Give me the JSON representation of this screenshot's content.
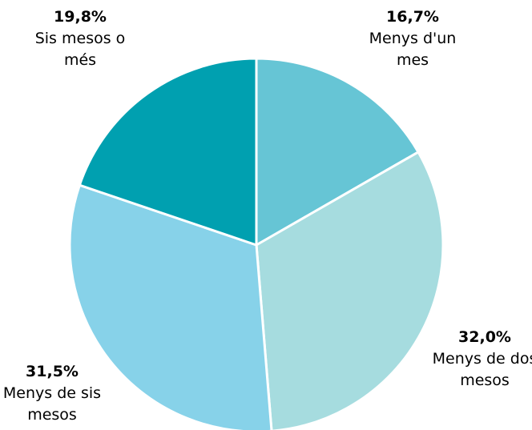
{
  "chart_data": {
    "type": "pie",
    "categories": [
      "Menys d'un mes",
      "Menys de dos mesos",
      "Menys de sis mesos",
      "Sis mesos o més"
    ],
    "values": [
      16.7,
      32.0,
      31.5,
      19.8
    ],
    "value_labels": [
      "16,7%",
      "32,0%",
      "31,5%",
      "19,8%"
    ],
    "colors": [
      "#66c5d5",
      "#a6dcdf",
      "#87d2e9",
      "#00a0b0"
    ]
  }
}
